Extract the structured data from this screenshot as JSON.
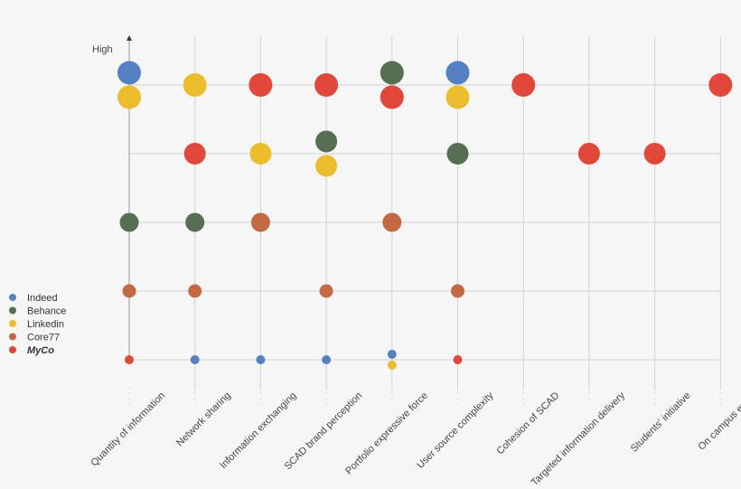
{
  "chart_data": {
    "type": "scatter",
    "title": "",
    "xlabel": "",
    "ylabel": "High",
    "categories": [
      "Quantity of information",
      "Network sharing",
      "Information exchanging",
      "SCAD brand perception",
      "Portfolio expressive force",
      "User source complexity",
      "Cohesion of SCAD",
      "Targeted information delivery",
      "Students' initiative",
      "On campus evets"
    ],
    "levels": [
      1,
      2,
      3,
      4,
      5
    ],
    "legend_position": "left",
    "grid": true,
    "series": [
      {
        "name": "Indeed",
        "color": "#5581c2",
        "points": [
          [
            0,
            5
          ],
          [
            1,
            1
          ],
          [
            2,
            1
          ],
          [
            3,
            1
          ],
          [
            4,
            1
          ],
          [
            5,
            5
          ]
        ]
      },
      {
        "name": "Behance",
        "color": "#566e52",
        "points": [
          [
            0,
            3
          ],
          [
            1,
            3
          ],
          [
            3,
            4
          ],
          [
            4,
            5
          ],
          [
            5,
            4
          ]
        ]
      },
      {
        "name": "Linkedin",
        "color": "#ebbd2c",
        "points": [
          [
            0,
            5
          ],
          [
            1,
            5
          ],
          [
            2,
            4
          ],
          [
            3,
            4
          ],
          [
            4,
            1
          ],
          [
            5,
            5
          ]
        ]
      },
      {
        "name": "Core77",
        "color": "#c46a43",
        "points": [
          [
            0,
            2
          ],
          [
            1,
            2
          ],
          [
            2,
            3
          ],
          [
            3,
            2
          ],
          [
            4,
            3
          ],
          [
            5,
            2
          ]
        ]
      },
      {
        "name": "MyCo",
        "color": "#e2483a",
        "points": [
          [
            0,
            1
          ],
          [
            1,
            4
          ],
          [
            2,
            5
          ],
          [
            3,
            5
          ],
          [
            4,
            5
          ],
          [
            5,
            1
          ],
          [
            6,
            5
          ],
          [
            7,
            4
          ],
          [
            8,
            4
          ],
          [
            9,
            5
          ]
        ]
      }
    ]
  }
}
